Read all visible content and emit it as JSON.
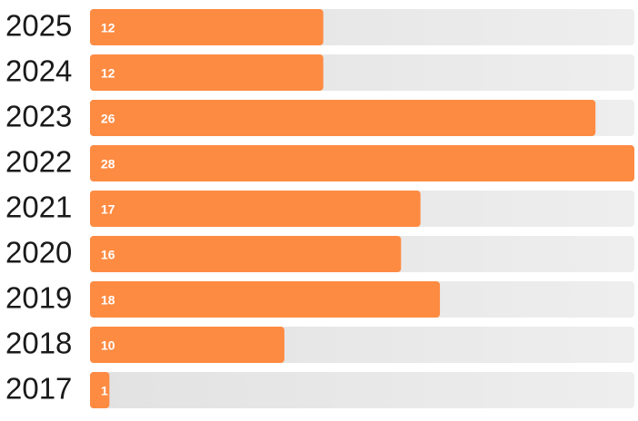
{
  "chart_data": {
    "type": "bar",
    "categories": [
      "2025",
      "2024",
      "2023",
      "2022",
      "2021",
      "2020",
      "2019",
      "2018",
      "2017"
    ],
    "values": [
      12,
      12,
      26,
      28,
      17,
      16,
      18,
      10,
      1
    ],
    "color": "#fe8b42"
  }
}
